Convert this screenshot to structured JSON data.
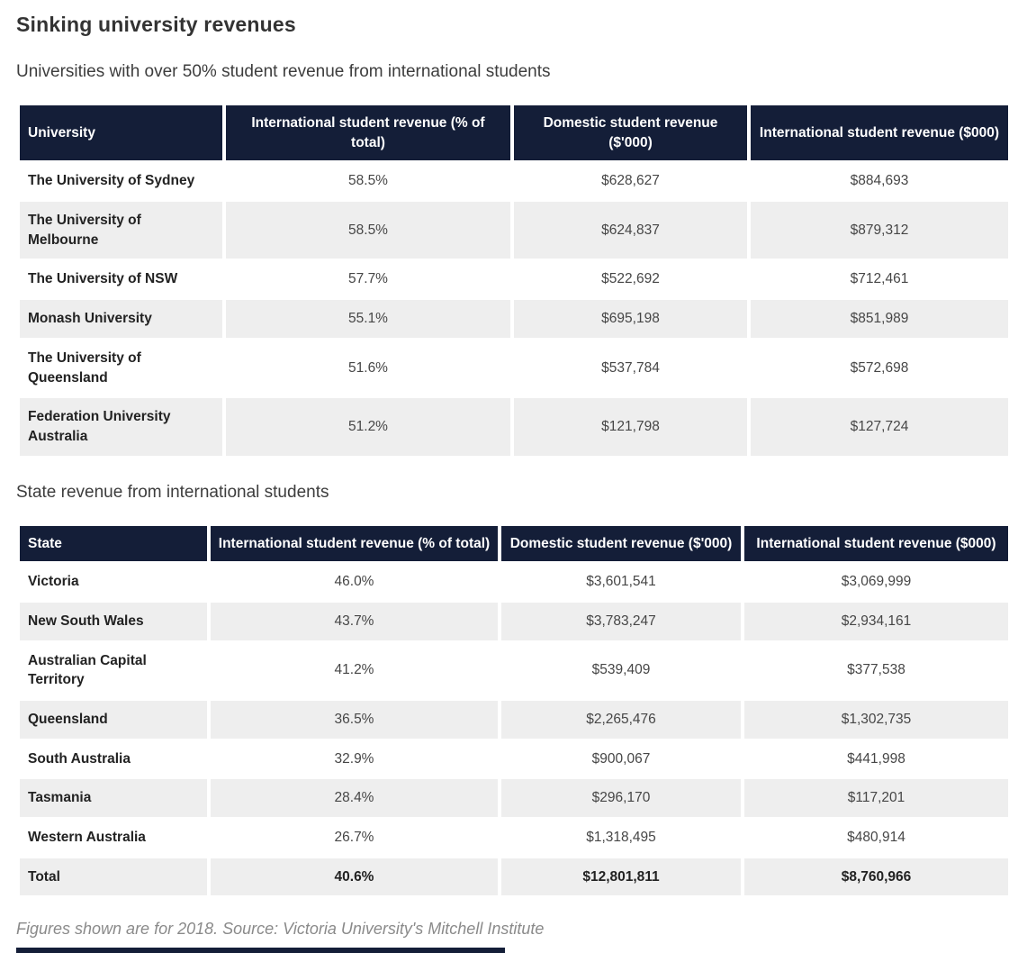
{
  "page": {
    "title": "Sinking university revenues",
    "source_note": "Figures shown are for 2018. Source: Victoria University's Mitchell Institute"
  },
  "colors": {
    "header_bg": "#141e38",
    "row_alt_bg": "#eeeeee",
    "title_text": "#333333",
    "cell_text": "#464646",
    "source_text": "#8a8a8a"
  },
  "tables": [
    {
      "caption": "Universities with over 50% student revenue from international students",
      "headers": [
        "University",
        "International student revenue (% of total)",
        "Domestic student revenue ($'000)",
        "International student revenue ($000)"
      ],
      "rows": [
        [
          "The University of Sydney",
          "58.5%",
          "$628,627",
          "$884,693"
        ],
        [
          "The University of Melbourne",
          "58.5%",
          "$624,837",
          "$879,312"
        ],
        [
          "The University of NSW",
          "57.7%",
          "$522,692",
          "$712,461"
        ],
        [
          "Monash University",
          "55.1%",
          "$695,198",
          "$851,989"
        ],
        [
          "The University of Queensland",
          "51.6%",
          "$537,784",
          "$572,698"
        ],
        [
          "Federation University Australia",
          "51.2%",
          "$121,798",
          "$127,724"
        ]
      ]
    },
    {
      "caption": "State revenue from international students",
      "headers": [
        "State",
        "International student revenue (% of total)",
        "Domestic student revenue ($'000)",
        "International student revenue ($000)"
      ],
      "rows": [
        [
          "Victoria",
          "46.0%",
          "$3,601,541",
          "$3,069,999"
        ],
        [
          "New South Wales",
          "43.7%",
          "$3,783,247",
          "$2,934,161"
        ],
        [
          "Australian Capital Territory",
          "41.2%",
          "$539,409",
          "$377,538"
        ],
        [
          "Queensland",
          "36.5%",
          "$2,265,476",
          "$1,302,735"
        ],
        [
          "South Australia",
          "32.9%",
          "$900,067",
          "$441,998"
        ],
        [
          "Tasmania",
          "28.4%",
          "$296,170",
          "$117,201"
        ],
        [
          "Western Australia",
          "26.7%",
          "$1,318,495",
          "$480,914"
        ]
      ],
      "total_row": [
        "Total",
        "40.6%",
        "$12,801,811",
        "$8,760,966"
      ]
    }
  ]
}
